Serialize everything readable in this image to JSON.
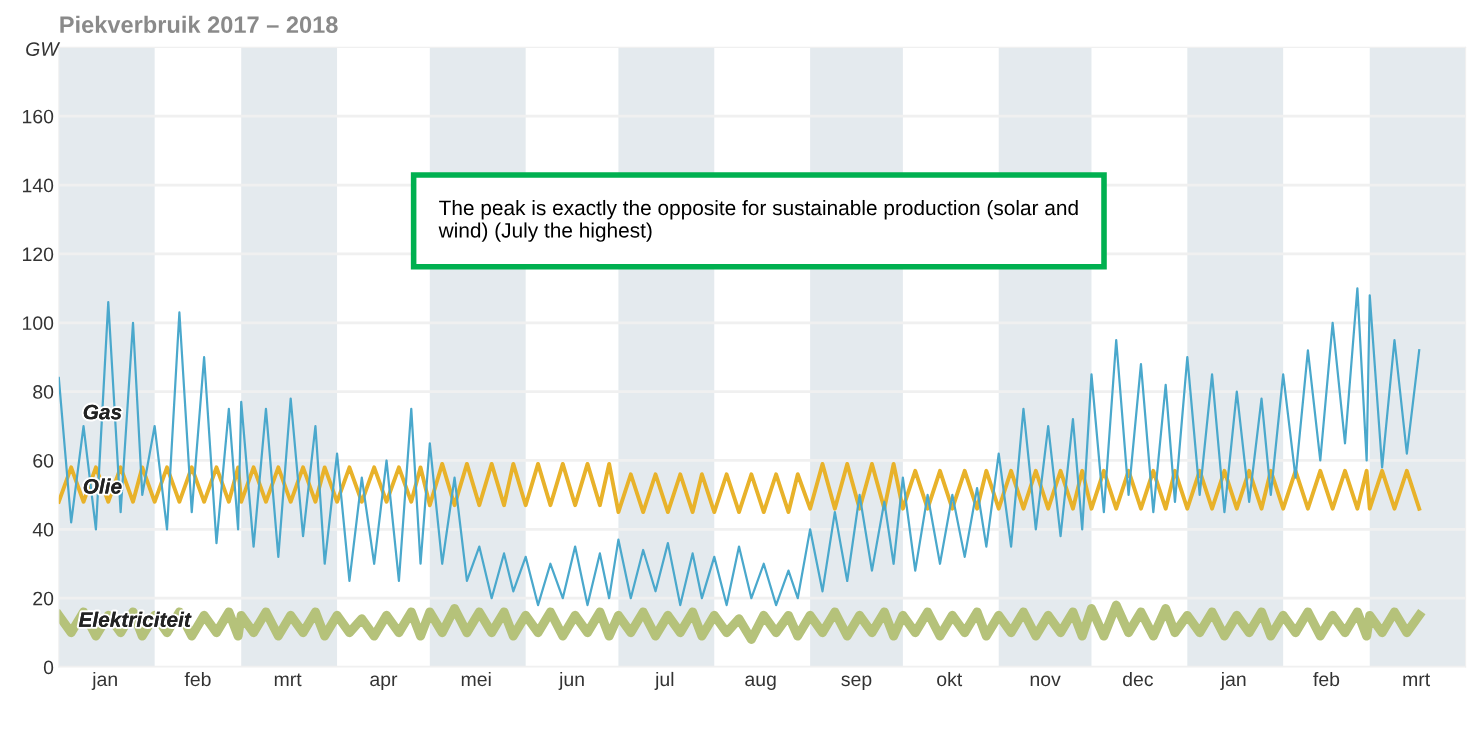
{
  "chart_data": {
    "type": "line",
    "title": "Piekverbruik 2017 – 2018",
    "ylabel": "GW",
    "annotations": [
      "The peak is exactly the opposite for sustainable production (solar and wind) (July the highest)"
    ],
    "xlim": [
      "2017-01-01",
      "2018-04-01"
    ],
    "ylim": [
      0,
      180
    ],
    "yticks": [
      0,
      20,
      40,
      60,
      80,
      100,
      120,
      140,
      160
    ],
    "xticks": [
      {
        "value": "2017-01-16",
        "label": "jan"
      },
      {
        "value": "2017-02-15",
        "label": "feb"
      },
      {
        "value": "2017-03-16",
        "label": "mrt"
      },
      {
        "value": "2017-04-16",
        "label": "apr"
      },
      {
        "value": "2017-05-16",
        "label": "mei"
      },
      {
        "value": "2017-06-16",
        "label": "jun"
      },
      {
        "value": "2017-07-16",
        "label": "jul"
      },
      {
        "value": "2017-08-16",
        "label": "aug"
      },
      {
        "value": "2017-09-16",
        "label": "sep"
      },
      {
        "value": "2017-10-16",
        "label": "okt"
      },
      {
        "value": "2017-11-16",
        "label": "nov"
      },
      {
        "value": "2017-12-16",
        "label": "dec"
      },
      {
        "value": "2018-01-16",
        "label": "jan"
      },
      {
        "value": "2018-02-15",
        "label": "feb"
      },
      {
        "value": "2018-03-16",
        "label": "mrt"
      }
    ],
    "grid": "y",
    "bands": [
      {
        "axis": "x",
        "from": "2017-01-01",
        "to": "2017-02-01",
        "color": "#e4eaee"
      },
      {
        "axis": "x",
        "from": "2017-03-01",
        "to": "2017-04-01",
        "color": "#e4eaee"
      },
      {
        "axis": "x",
        "from": "2017-05-01",
        "to": "2017-06-01",
        "color": "#e4eaee"
      },
      {
        "axis": "x",
        "from": "2017-07-01",
        "to": "2017-08-01",
        "color": "#e4eaee"
      },
      {
        "axis": "x",
        "from": "2017-09-01",
        "to": "2017-10-01",
        "color": "#e4eaee"
      },
      {
        "axis": "x",
        "from": "2017-11-01",
        "to": "2017-12-01",
        "color": "#e4eaee"
      },
      {
        "axis": "x",
        "from": "2018-01-01",
        "to": "2018-02-01",
        "color": "#e4eaee"
      },
      {
        "axis": "x",
        "from": "2018-03-01",
        "to": "2018-04-01",
        "color": "#e4eaee"
      }
    ],
    "x": [
      "2017-01-01",
      "2017-01-05",
      "2017-01-09",
      "2017-01-13",
      "2017-01-17",
      "2017-01-21",
      "2017-01-25",
      "2017-01-28",
      "2017-02-01",
      "2017-02-05",
      "2017-02-09",
      "2017-02-13",
      "2017-02-17",
      "2017-02-21",
      "2017-02-25",
      "2017-02-28",
      "2017-03-01",
      "2017-03-05",
      "2017-03-09",
      "2017-03-13",
      "2017-03-17",
      "2017-03-21",
      "2017-03-25",
      "2017-03-28",
      "2017-04-01",
      "2017-04-05",
      "2017-04-09",
      "2017-04-13",
      "2017-04-17",
      "2017-04-21",
      "2017-04-25",
      "2017-04-28",
      "2017-05-01",
      "2017-05-05",
      "2017-05-09",
      "2017-05-13",
      "2017-05-17",
      "2017-05-21",
      "2017-05-25",
      "2017-05-28",
      "2017-06-01",
      "2017-06-05",
      "2017-06-09",
      "2017-06-13",
      "2017-06-17",
      "2017-06-21",
      "2017-06-25",
      "2017-06-28",
      "2017-07-01",
      "2017-07-05",
      "2017-07-09",
      "2017-07-13",
      "2017-07-17",
      "2017-07-21",
      "2017-07-25",
      "2017-07-28",
      "2017-08-01",
      "2017-08-05",
      "2017-08-09",
      "2017-08-13",
      "2017-08-17",
      "2017-08-21",
      "2017-08-25",
      "2017-08-28",
      "2017-09-01",
      "2017-09-05",
      "2017-09-09",
      "2017-09-13",
      "2017-09-17",
      "2017-09-21",
      "2017-09-25",
      "2017-09-28",
      "2017-10-01",
      "2017-10-05",
      "2017-10-09",
      "2017-10-13",
      "2017-10-17",
      "2017-10-21",
      "2017-10-25",
      "2017-10-28",
      "2017-11-01",
      "2017-11-05",
      "2017-11-09",
      "2017-11-13",
      "2017-11-17",
      "2017-11-21",
      "2017-11-25",
      "2017-11-28",
      "2017-12-01",
      "2017-12-05",
      "2017-12-09",
      "2017-12-13",
      "2017-12-17",
      "2017-12-21",
      "2017-12-25",
      "2017-12-28",
      "2018-01-01",
      "2018-01-05",
      "2018-01-09",
      "2018-01-13",
      "2018-01-17",
      "2018-01-21",
      "2018-01-25",
      "2018-01-28",
      "2018-02-01",
      "2018-02-05",
      "2018-02-09",
      "2018-02-13",
      "2018-02-17",
      "2018-02-21",
      "2018-02-25",
      "2018-02-28",
      "2018-03-01",
      "2018-03-05",
      "2018-03-09",
      "2018-03-13",
      "2018-03-17"
    ],
    "series": [
      {
        "name": "Gas",
        "color": "#4aa8cc",
        "values": [
          84,
          42,
          70,
          40,
          106,
          45,
          100,
          50,
          70,
          40,
          103,
          45,
          90,
          36,
          75,
          40,
          77,
          35,
          75,
          32,
          78,
          38,
          70,
          30,
          62,
          25,
          55,
          30,
          60,
          25,
          75,
          30,
          65,
          30,
          55,
          25,
          35,
          20,
          33,
          22,
          32,
          18,
          30,
          20,
          35,
          18,
          33,
          20,
          37,
          20,
          34,
          22,
          36,
          18,
          33,
          20,
          32,
          18,
          35,
          20,
          30,
          18,
          28,
          20,
          40,
          22,
          45,
          25,
          50,
          28,
          48,
          30,
          55,
          28,
          50,
          30,
          50,
          32,
          52,
          35,
          62,
          35,
          75,
          40,
          70,
          38,
          72,
          40,
          85,
          45,
          95,
          50,
          88,
          45,
          82,
          48,
          90,
          50,
          85,
          45,
          80,
          48,
          78,
          50,
          85,
          55,
          92,
          60,
          100,
          65,
          110,
          60,
          108,
          58,
          95,
          62,
          92
        ]
      },
      {
        "name": "Olie",
        "color": "#e8b22a",
        "values": [
          48,
          58,
          48,
          58,
          48,
          58,
          48,
          58,
          48,
          58,
          48,
          58,
          48,
          58,
          48,
          58,
          48,
          58,
          48,
          58,
          48,
          58,
          48,
          58,
          48,
          58,
          48,
          58,
          48,
          58,
          48,
          58,
          47,
          59,
          47,
          59,
          47,
          59,
          47,
          59,
          47,
          59,
          47,
          59,
          47,
          59,
          47,
          59,
          45,
          56,
          45,
          56,
          45,
          56,
          45,
          56,
          45,
          56,
          45,
          56,
          45,
          56,
          45,
          56,
          46,
          59,
          46,
          59,
          46,
          59,
          46,
          59,
          46,
          57,
          46,
          57,
          46,
          57,
          46,
          57,
          46,
          57,
          46,
          57,
          46,
          57,
          46,
          57,
          46,
          57,
          46,
          57,
          46,
          57,
          46,
          57,
          46,
          57,
          46,
          57,
          46,
          57,
          46,
          57,
          46,
          57,
          46,
          57,
          46,
          57,
          46,
          57,
          46,
          57,
          46,
          57,
          46
        ]
      },
      {
        "name": "Elektriciteit",
        "color": "#b5c27a",
        "values": [
          15,
          10,
          16,
          9,
          15,
          10,
          16,
          9,
          15,
          10,
          16,
          9,
          15,
          10,
          16,
          9,
          15,
          10,
          16,
          9,
          15,
          10,
          16,
          9,
          15,
          10,
          14,
          9,
          15,
          10,
          16,
          9,
          16,
          10,
          17,
          10,
          16,
          10,
          16,
          9,
          15,
          10,
          16,
          9,
          15,
          10,
          16,
          9,
          15,
          10,
          16,
          9,
          15,
          10,
          16,
          9,
          15,
          10,
          14,
          8,
          15,
          10,
          15,
          9,
          15,
          10,
          16,
          9,
          15,
          10,
          16,
          9,
          15,
          10,
          16,
          9,
          15,
          10,
          16,
          9,
          15,
          10,
          16,
          9,
          15,
          10,
          16,
          9,
          17,
          9,
          18,
          10,
          16,
          9,
          17,
          10,
          15,
          10,
          16,
          9,
          15,
          10,
          16,
          9,
          15,
          10,
          16,
          9,
          15,
          10,
          16,
          9,
          15,
          10,
          16,
          10,
          15
        ]
      }
    ]
  }
}
